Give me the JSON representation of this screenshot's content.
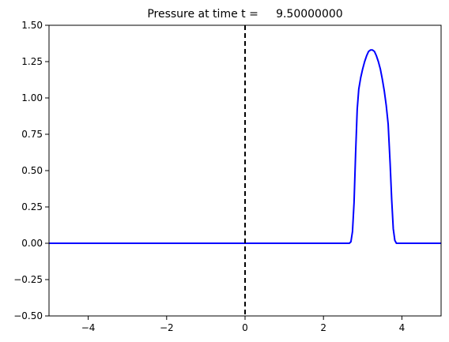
{
  "chart_data": {
    "type": "line",
    "title": "Pressure at time t =     9.50000000",
    "xlabel": "",
    "ylabel": "",
    "xlim": [
      -5,
      5
    ],
    "ylim": [
      -0.5,
      1.5
    ],
    "x_ticks": [
      -4,
      -2,
      0,
      2,
      4
    ],
    "x_tick_labels": [
      "−4",
      "−2",
      "0",
      "2",
      "4"
    ],
    "y_ticks": [
      -0.5,
      -0.25,
      0.0,
      0.25,
      0.5,
      0.75,
      1.0,
      1.25,
      1.5
    ],
    "y_tick_labels": [
      "−0.50",
      "−0.25",
      "0.00",
      "0.25",
      "0.50",
      "0.75",
      "1.00",
      "1.25",
      "1.50"
    ],
    "grid": false,
    "series": [
      {
        "color": "#0000ff",
        "x": [
          -5,
          2.66,
          2.7,
          2.74,
          2.78,
          2.82,
          2.86,
          2.9,
          2.95,
          3.0,
          3.05,
          3.1,
          3.15,
          3.2,
          3.25,
          3.3,
          3.35,
          3.4,
          3.45,
          3.5,
          3.55,
          3.6,
          3.65,
          3.7,
          3.74,
          3.78,
          3.82,
          3.86,
          5
        ],
        "y": [
          0,
          0,
          0.01,
          0.08,
          0.28,
          0.62,
          0.92,
          1.06,
          1.14,
          1.2,
          1.25,
          1.29,
          1.32,
          1.33,
          1.33,
          1.32,
          1.29,
          1.25,
          1.2,
          1.13,
          1.05,
          0.95,
          0.82,
          0.55,
          0.3,
          0.1,
          0.02,
          0,
          0
        ]
      }
    ],
    "annotations": [
      {
        "type": "vline",
        "x": 0,
        "style": "dashed",
        "color": "#000000"
      }
    ]
  }
}
